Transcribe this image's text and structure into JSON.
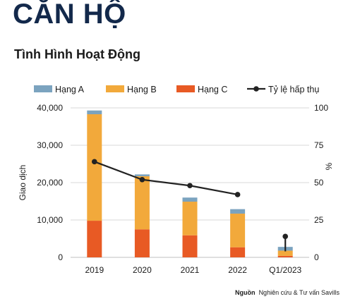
{
  "page": {
    "heading": "CĂN HỘ",
    "subtitle": "Tình Hình Hoạt Động",
    "source_label": "Nguồn",
    "source_text": "Nghiên cứu & Tư vấn Savills"
  },
  "colors": {
    "heading": "#13294b",
    "hang_a": "#7ba3bf",
    "hang_b": "#f2a93b",
    "hang_c": "#e85a24",
    "line": "#222222",
    "grid": "#d9d9d9"
  },
  "chart_data": {
    "type": "bar",
    "stacked": true,
    "categories": [
      "2019",
      "2020",
      "2021",
      "2022",
      "Q1/2023"
    ],
    "series": [
      {
        "name": "Hạng C",
        "values": [
          9800,
          7500,
          5900,
          2700,
          400
        ],
        "color": "#e85a24"
      },
      {
        "name": "Hạng B",
        "values": [
          28500,
          14200,
          9000,
          9000,
          1400
        ],
        "color": "#f2a93b"
      },
      {
        "name": "Hạng A",
        "values": [
          1000,
          500,
          1100,
          1200,
          1000
        ],
        "color": "#7ba3bf"
      }
    ],
    "line_series": {
      "name": "Tỷ lệ hấp thụ",
      "values": [
        64,
        52,
        48,
        42,
        null
      ],
      "color": "#222222"
    },
    "q1_marker": {
      "point": 14,
      "error_low": 4,
      "error_high": 14
    },
    "legend": [
      "Hạng A",
      "Hạng B",
      "Hạng C",
      "Tỷ lệ hấp thụ"
    ],
    "legend_position": "top",
    "ylabel": "Giao dịch",
    "y2label": "%",
    "ylim": [
      0,
      40000
    ],
    "y2lim": [
      0,
      100
    ],
    "yticks": [
      "0",
      "10,000",
      "20,000",
      "30,000",
      "40,000"
    ],
    "y2ticks": [
      "0",
      "25",
      "50",
      "75",
      "100"
    ],
    "grid": true
  }
}
